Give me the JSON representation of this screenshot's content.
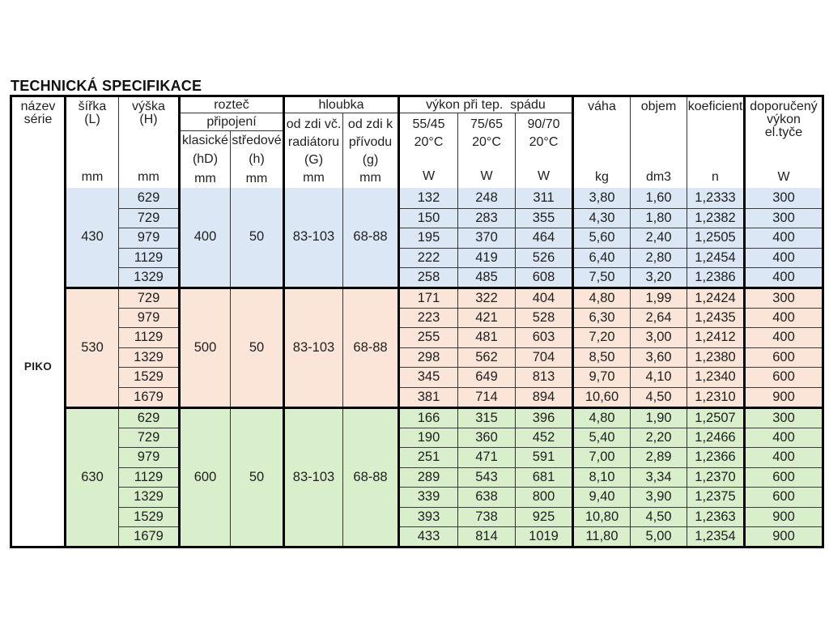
{
  "page": {
    "title": "TECHNICKÁ SPECIFIKACE",
    "background": "#ffffff"
  },
  "colors": {
    "border_thick": "#000000",
    "border_thin": "#333333",
    "text": "#1f1f1f",
    "block_blue": "#dce7f5",
    "block_pink": "#fbe5d8",
    "block_green": "#d9efcc"
  },
  "table": {
    "header": {
      "nazev_serie": {
        "line1": "název",
        "line2": "série"
      },
      "sirka": {
        "label": "šířka",
        "sub": "(L)",
        "unit": "mm"
      },
      "vyska": {
        "label": "výška",
        "sub": "(H)",
        "unit": "mm"
      },
      "roztec": {
        "group": "rozteč",
        "subgroup": "připojení",
        "col1": {
          "label": "klasické",
          "sub": "(hD)",
          "unit": "mm"
        },
        "col2": {
          "label": "středové",
          "sub": "(h)",
          "unit": "mm"
        }
      },
      "hloubka": {
        "group": "hloubka",
        "col1": {
          "line1": "od zdi vč.",
          "line2": "radiátoru",
          "sub": "(G)",
          "unit": "mm"
        },
        "col2": {
          "line1": "od zdi k",
          "line2": "přívodu",
          "sub": "(g)",
          "unit": "mm"
        }
      },
      "vykon": {
        "group": "výkon při tep.  spádu",
        "col1": {
          "label": "55/45",
          "sub": "20°C",
          "unit": "W"
        },
        "col2": {
          "label": "75/65",
          "sub": "20°C",
          "unit": "W"
        },
        "col3": {
          "label": "90/70",
          "sub": "20°C",
          "unit": "W"
        }
      },
      "vaha": {
        "label": "váha",
        "unit": "kg"
      },
      "objem": {
        "label": "objem",
        "unit": "dm3"
      },
      "koeficient": {
        "label": "koeficient",
        "unit": "n"
      },
      "doporuceny": {
        "line1": "doporučený",
        "line2": "výkon",
        "line3": "el.tyče",
        "unit": "W"
      }
    },
    "series_name": "PIKO",
    "blocks": [
      {
        "color": "#dce7f5",
        "sirka": "430",
        "klasicke": "400",
        "stredove": "50",
        "hloubka_g": "83-103",
        "hloubka_g2": "68-88",
        "rows": [
          [
            "629",
            "132",
            "248",
            "311",
            "3,80",
            "1,60",
            "1,2333",
            "300"
          ],
          [
            "729",
            "150",
            "283",
            "355",
            "4,30",
            "1,80",
            "1,2382",
            "300"
          ],
          [
            "979",
            "195",
            "370",
            "464",
            "5,60",
            "2,40",
            "1,2505",
            "400"
          ],
          [
            "1129",
            "222",
            "419",
            "526",
            "6,40",
            "2,80",
            "1,2454",
            "400"
          ],
          [
            "1329",
            "258",
            "485",
            "608",
            "7,50",
            "3,20",
            "1,2386",
            "400"
          ]
        ]
      },
      {
        "color": "#fbe5d8",
        "sirka": "530",
        "klasicke": "500",
        "stredove": "50",
        "hloubka_g": "83-103",
        "hloubka_g2": "68-88",
        "rows": [
          [
            "729",
            "171",
            "322",
            "404",
            "4,80",
            "1,99",
            "1,2424",
            "300"
          ],
          [
            "979",
            "223",
            "421",
            "528",
            "6,30",
            "2,64",
            "1,2435",
            "400"
          ],
          [
            "1129",
            "255",
            "481",
            "603",
            "7,20",
            "3,00",
            "1,2412",
            "400"
          ],
          [
            "1329",
            "298",
            "562",
            "704",
            "8,50",
            "3,60",
            "1,2380",
            "600"
          ],
          [
            "1529",
            "345",
            "649",
            "813",
            "9,70",
            "4,10",
            "1,2340",
            "600"
          ],
          [
            "1679",
            "381",
            "714",
            "894",
            "10,60",
            "4,50",
            "1,2310",
            "900"
          ]
        ]
      },
      {
        "color": "#d9efcc",
        "sirka": "630",
        "klasicke": "600",
        "stredove": "50",
        "hloubka_g": "83-103",
        "hloubka_g2": "68-88",
        "rows": [
          [
            "629",
            "166",
            "315",
            "396",
            "4,80",
            "1,90",
            "1,2507",
            "300"
          ],
          [
            "729",
            "190",
            "360",
            "452",
            "5,40",
            "2,20",
            "1,2466",
            "400"
          ],
          [
            "979",
            "251",
            "471",
            "591",
            "7,00",
            "2,89",
            "1,2366",
            "400"
          ],
          [
            "1129",
            "289",
            "543",
            "681",
            "8,10",
            "3,34",
            "1,2370",
            "600"
          ],
          [
            "1329",
            "339",
            "638",
            "800",
            "9,40",
            "3,90",
            "1,2375",
            "600"
          ],
          [
            "1529",
            "393",
            "738",
            "925",
            "10,80",
            "4,50",
            "1,2363",
            "900"
          ],
          [
            "1679",
            "433",
            "814",
            "1019",
            "11,80",
            "5,00",
            "1,2354",
            "900"
          ]
        ]
      }
    ]
  }
}
